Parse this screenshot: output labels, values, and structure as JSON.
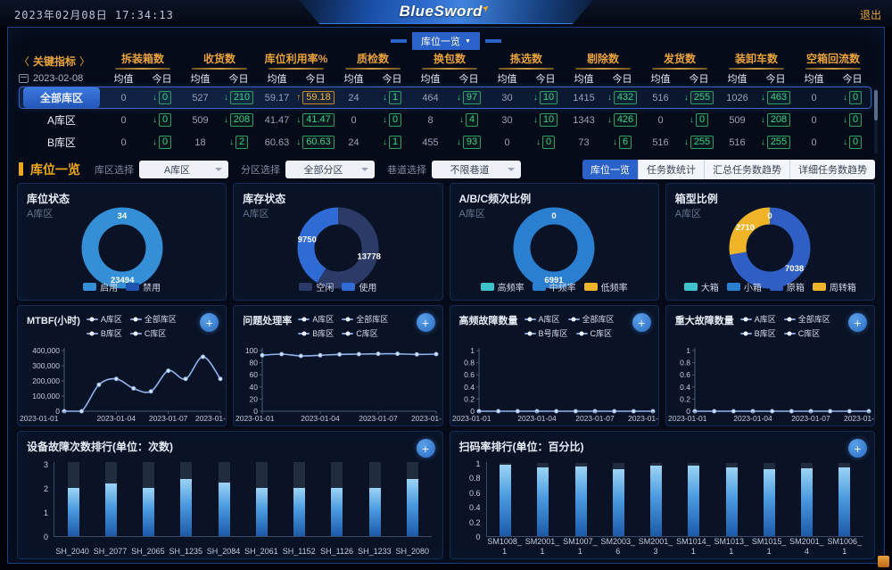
{
  "header": {
    "datetime": "2023年02月08日 17:34:13",
    "logo": "BlueSword",
    "logout": "退出",
    "nav_tab": "库位一览"
  },
  "kpi": {
    "prev": "〈",
    "title": "关键指标",
    "next": "〉",
    "date": "2023-02-08",
    "avg_label": "均值",
    "today_label": "今日",
    "columns": [
      "拆装箱数",
      "收货数",
      "库位利用率%",
      "质检数",
      "换包数",
      "拣选数",
      "剔除数",
      "发货数",
      "装卸车数",
      "空箱回流数"
    ],
    "rows": [
      {
        "name": "全部库区",
        "active": true,
        "cells": [
          [
            "0",
            "0",
            "down"
          ],
          [
            "527",
            "210",
            "down"
          ],
          [
            "59.17",
            "59.18",
            "up"
          ],
          [
            "24",
            "1",
            "down"
          ],
          [
            "464",
            "97",
            "down"
          ],
          [
            "30",
            "10",
            "down"
          ],
          [
            "1415",
            "432",
            "down"
          ],
          [
            "516",
            "255",
            "down"
          ],
          [
            "1026",
            "463",
            "down"
          ],
          [
            "0",
            "0",
            "down"
          ]
        ]
      },
      {
        "name": "A库区",
        "active": false,
        "cells": [
          [
            "0",
            "0",
            "down"
          ],
          [
            "509",
            "208",
            "down"
          ],
          [
            "41.47",
            "41.47",
            "down"
          ],
          [
            "0",
            "0",
            "down"
          ],
          [
            "8",
            "4",
            "down"
          ],
          [
            "30",
            "10",
            "down"
          ],
          [
            "1343",
            "426",
            "down"
          ],
          [
            "0",
            "0",
            "down"
          ],
          [
            "509",
            "208",
            "down"
          ],
          [
            "0",
            "0",
            "down"
          ]
        ]
      },
      {
        "name": "B库区",
        "active": false,
        "cells": [
          [
            "0",
            "0",
            "down"
          ],
          [
            "18",
            "2",
            "down"
          ],
          [
            "60.63",
            "60.63",
            "down"
          ],
          [
            "24",
            "1",
            "down"
          ],
          [
            "455",
            "93",
            "down"
          ],
          [
            "0",
            "0",
            "down"
          ],
          [
            "73",
            "6",
            "down"
          ],
          [
            "516",
            "255",
            "down"
          ],
          [
            "516",
            "255",
            "down"
          ],
          [
            "0",
            "0",
            "down"
          ]
        ]
      }
    ]
  },
  "filters": {
    "title": "库位一览",
    "selects": [
      {
        "label": "库区选择",
        "value": "A库区"
      },
      {
        "label": "分区选择",
        "value": "全部分区"
      },
      {
        "label": "巷道选择",
        "value": "不限巷道"
      }
    ],
    "views": [
      {
        "label": "库位一览",
        "active": true
      },
      {
        "label": "任务数统计",
        "active": false
      },
      {
        "label": "汇总任务数趋势",
        "active": false
      },
      {
        "label": "详细任务数趋势",
        "active": false
      }
    ]
  },
  "donuts": [
    {
      "title": "库位状态",
      "subtitle": "A库区",
      "type": "pie",
      "slices": [
        {
          "label": "启用",
          "value": 23494,
          "color": "#348fd6"
        },
        {
          "label": "禁用",
          "value": 34,
          "color": "#1d55ae"
        }
      ]
    },
    {
      "title": "库存状态",
      "subtitle": "A库区",
      "type": "pie",
      "slices": [
        {
          "label": "空闲",
          "value": 13778,
          "color": "#2b3a67"
        },
        {
          "label": "使用",
          "value": 9750,
          "color": "#2e6bd5"
        }
      ]
    },
    {
      "title": "A/B/C频次比例",
      "subtitle": "A库区",
      "type": "pie",
      "slices": [
        {
          "label": "高频率",
          "value": 0,
          "color": "#3cc3cb"
        },
        {
          "label": "中频率",
          "value": 6991,
          "color": "#2a7fd0"
        },
        {
          "label": "低频率",
          "value": 0,
          "color": "#f0b429"
        }
      ]
    },
    {
      "title": "箱型比例",
      "subtitle": "A库区",
      "type": "pie",
      "slices": [
        {
          "label": "大箱",
          "value": 0,
          "color": "#3cc3cb"
        },
        {
          "label": "小箱",
          "value": 0,
          "color": "#2a7fd0"
        },
        {
          "label": "原箱",
          "value": 7038,
          "color": "#2f5ec4"
        },
        {
          "label": "周转箱",
          "value": 2710,
          "color": "#f0b429"
        }
      ]
    }
  ],
  "line_charts": [
    {
      "title": "MTBF(小时)",
      "type": "line",
      "legend": [
        "A库区",
        "全部库区",
        "B库区",
        "C库区"
      ],
      "y_ticks": [
        "0",
        "100,000",
        "200,000",
        "300,000",
        "400,000"
      ],
      "y_max": 400000,
      "x_ticks": [
        "2023-01-01",
        "2023-01-04",
        "2023-01-07",
        "2023-01-"
      ],
      "values": [
        0,
        0,
        180000,
        220000,
        155000,
        135000,
        275000,
        220000,
        370000,
        220000
      ],
      "wide_axis": true
    },
    {
      "title": "问题处理率",
      "type": "line",
      "legend": [
        "A库区",
        "全部库区",
        "B库区",
        "C库区"
      ],
      "y_ticks": [
        "0",
        "20",
        "40",
        "60",
        "80",
        "100"
      ],
      "y_max": 100,
      "x_ticks": [
        "2023-01-01",
        "2023-01-04",
        "2023-01-07",
        "2023-01-"
      ],
      "values": [
        95,
        97,
        94,
        95,
        96.5,
        97,
        97.5,
        97.5,
        96.5,
        97
      ],
      "wide_axis": false
    },
    {
      "title": "高频故障数量",
      "type": "line",
      "legend": [
        "A库区",
        "全部库区",
        "B号库区",
        "C库区"
      ],
      "y_ticks": [
        "0",
        "0.2",
        "0.4",
        "0.6",
        "0.8",
        "1"
      ],
      "y_max": 1,
      "x_ticks": [
        "2023-01-01",
        "2023-01-04",
        "2023-01-07",
        "2023-01-"
      ],
      "values": [
        0,
        0,
        0,
        0,
        0,
        0,
        0,
        0,
        0,
        0
      ],
      "wide_axis": false
    },
    {
      "title": "重大故障数量",
      "type": "line",
      "legend": [
        "A库区",
        "全部库区",
        "B库区",
        "C库区"
      ],
      "y_ticks": [
        "0",
        "0.2",
        "0.4",
        "0.6",
        "0.8",
        "1"
      ],
      "y_max": 1,
      "x_ticks": [
        "2023-01-01",
        "2023-01-04",
        "2023-01-07",
        "2023-01-"
      ],
      "values": [
        0,
        0,
        0,
        0,
        0,
        0,
        0,
        0,
        0,
        0
      ],
      "wide_axis": false
    }
  ],
  "bar_charts": [
    {
      "title": "设备故障次数排行(单位：次数)",
      "type": "bar",
      "y_ticks": [
        "0",
        "1",
        "2",
        "3"
      ],
      "y_max": 3.2,
      "track": 3.1,
      "two_line_labels": false,
      "categories": [
        "SH_2040",
        "SH_2077",
        "SH_2065",
        "SH_1235",
        "SH_2084",
        "SH_2061",
        "SH_1152",
        "SH_1126",
        "SH_1233",
        "SH_2080"
      ],
      "values": [
        2,
        2.2,
        2,
        2.4,
        2.25,
        2,
        2,
        2,
        2,
        2.4
      ]
    },
    {
      "title": "扫码率排行(单位：百分比)",
      "type": "bar",
      "y_ticks": [
        "0",
        "0.2",
        "0.4",
        "0.6",
        "0.8",
        "1"
      ],
      "y_max": 1.05,
      "track": 1,
      "two_line_labels": true,
      "categories": [
        "SM1008_1",
        "SM2001_1",
        "SM1007_1",
        "SM2003_6",
        "SM2001_3",
        "SM1014_1",
        "SM1013_1",
        "SM1015_1",
        "SM2001_4",
        "SM1006_1"
      ],
      "values": [
        0.98,
        0.94,
        0.95,
        0.92,
        0.97,
        0.96,
        0.94,
        0.92,
        0.93,
        0.94
      ]
    }
  ],
  "colors": {
    "accent_orange": "#f0a818",
    "up_orange": "#f5b942",
    "down_green": "#3ed184",
    "active_blue": "#2a62c9",
    "line_series": "#8fb3ec"
  }
}
